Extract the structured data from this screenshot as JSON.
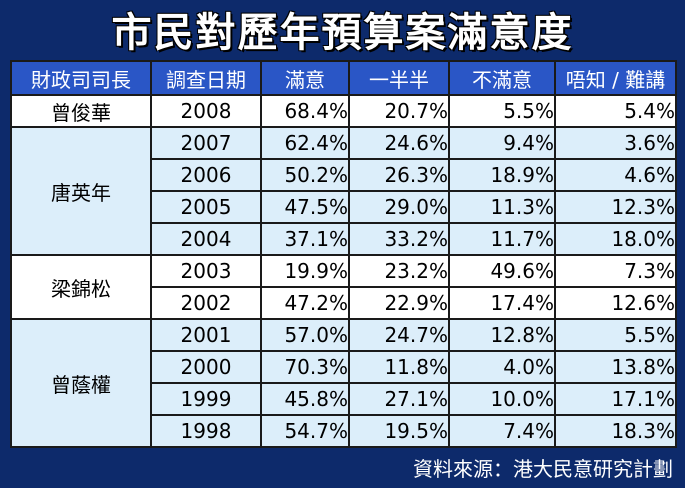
{
  "title": "市民對歷年預算案滿意度",
  "source": "資料來源：港大民意研究計劃",
  "chart_data": {
    "type": "table",
    "columns": [
      "財政司司長",
      "調查日期",
      "滿意",
      "一半半",
      "不滿意",
      "唔知 / 難講"
    ],
    "groups": [
      {
        "name": "曾俊華",
        "rows": [
          {
            "year": "2008",
            "satisfied": "68.4%",
            "half": "20.7%",
            "dissatisfied": "5.5%",
            "dontknow": "5.4%"
          }
        ]
      },
      {
        "name": "唐英年",
        "rows": [
          {
            "year": "2007",
            "satisfied": "62.4%",
            "half": "24.6%",
            "dissatisfied": "9.4%",
            "dontknow": "3.6%"
          },
          {
            "year": "2006",
            "satisfied": "50.2%",
            "half": "26.3%",
            "dissatisfied": "18.9%",
            "dontknow": "4.6%"
          },
          {
            "year": "2005",
            "satisfied": "47.5%",
            "half": "29.0%",
            "dissatisfied": "11.3%",
            "dontknow": "12.3%"
          },
          {
            "year": "2004",
            "satisfied": "37.1%",
            "half": "33.2%",
            "dissatisfied": "11.7%",
            "dontknow": "18.0%"
          }
        ]
      },
      {
        "name": "梁錦松",
        "rows": [
          {
            "year": "2003",
            "satisfied": "19.9%",
            "half": "23.2%",
            "dissatisfied": "49.6%",
            "dontknow": "7.3%"
          },
          {
            "year": "2002",
            "satisfied": "47.2%",
            "half": "22.9%",
            "dissatisfied": "17.4%",
            "dontknow": "12.6%"
          }
        ]
      },
      {
        "name": "曾蔭權",
        "rows": [
          {
            "year": "2001",
            "satisfied": "57.0%",
            "half": "24.7%",
            "dissatisfied": "12.8%",
            "dontknow": "5.5%"
          },
          {
            "year": "2000",
            "satisfied": "70.3%",
            "half": "11.8%",
            "dissatisfied": "4.0%",
            "dontknow": "13.8%"
          },
          {
            "year": "1999",
            "satisfied": "45.8%",
            "half": "27.1%",
            "dissatisfied": "10.0%",
            "dontknow": "17.1%"
          },
          {
            "year": "1998",
            "satisfied": "54.7%",
            "half": "19.5%",
            "dissatisfied": "7.4%",
            "dontknow": "18.3%"
          }
        ]
      }
    ]
  }
}
